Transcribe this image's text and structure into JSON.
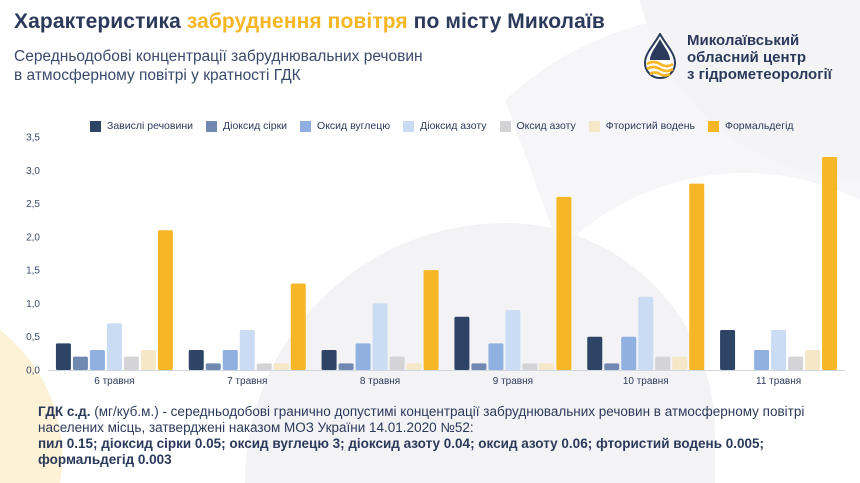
{
  "header": {
    "title_part1": "Характеристика",
    "title_accent": "забруднення повітря",
    "title_part2": "по місту Миколаїв",
    "subtitle_line1": "Середньодобові концентрації забруднювальних речовин",
    "subtitle_line2": "в атмосферному повітрі у кратності ГДК"
  },
  "org": {
    "line1": "Миколаївський",
    "line2": "обласний центр",
    "line3": "з гідрометеорології",
    "logo_icon": "drop-waves-icon"
  },
  "colors": {
    "accent": "#f6b625",
    "text": "#2b3a5a"
  },
  "chart_data": {
    "type": "bar",
    "categories": [
      "6 травня",
      "7 травня",
      "8 травня",
      "9 травня",
      "10 травня",
      "11 травня"
    ],
    "ylim": [
      0,
      3.5
    ],
    "y_ticks": [
      "0,0",
      "0,5",
      "1,0",
      "1,5",
      "2,0",
      "2,5",
      "3,0",
      "3,5"
    ],
    "grid": false,
    "legend_position": "top",
    "series": [
      {
        "name": "Завислі речовини",
        "color": "#2d4467",
        "values": [
          0.4,
          0.3,
          0.3,
          0.8,
          0.5,
          0.6
        ]
      },
      {
        "name": "Діоксид сірки",
        "color": "#6f89b0",
        "values": [
          0.2,
          0.1,
          0.1,
          0.1,
          0.1,
          0.0
        ]
      },
      {
        "name": "Оксид вуглецю",
        "color": "#8fb0e0",
        "values": [
          0.3,
          0.3,
          0.4,
          0.4,
          0.5,
          0.3
        ]
      },
      {
        "name": "Діоксид азоту",
        "color": "#c9dcf3",
        "values": [
          0.7,
          0.6,
          1.0,
          0.9,
          1.1,
          0.6
        ]
      },
      {
        "name": "Оксид азоту",
        "color": "#d4d4d6",
        "values": [
          0.2,
          0.1,
          0.2,
          0.1,
          0.2,
          0.2
        ]
      },
      {
        "name": "Фтористий водень",
        "color": "#f5e8c6",
        "values": [
          0.3,
          0.1,
          0.1,
          0.1,
          0.2,
          0.3
        ]
      },
      {
        "name": "Формальдегід",
        "color": "#f6b625",
        "values": [
          2.1,
          1.3,
          1.5,
          2.6,
          2.8,
          3.2
        ]
      }
    ]
  },
  "footnote": {
    "term": "ГДК с.д.",
    "definition": " (мг/куб.м.) - середньодобові гранично допустимі концентрації забруднювальних речовин в атмосферному повітрі населених місць, затверджені наказом МОЗ України 14.01.2020 №52:",
    "norms": "пил 0.15; діоксид сірки 0.05; оксид вуглецю 3; діоксид азоту 0.04; оксид азоту 0.06; фтористий водень 0.005; формальдегід 0.003"
  }
}
